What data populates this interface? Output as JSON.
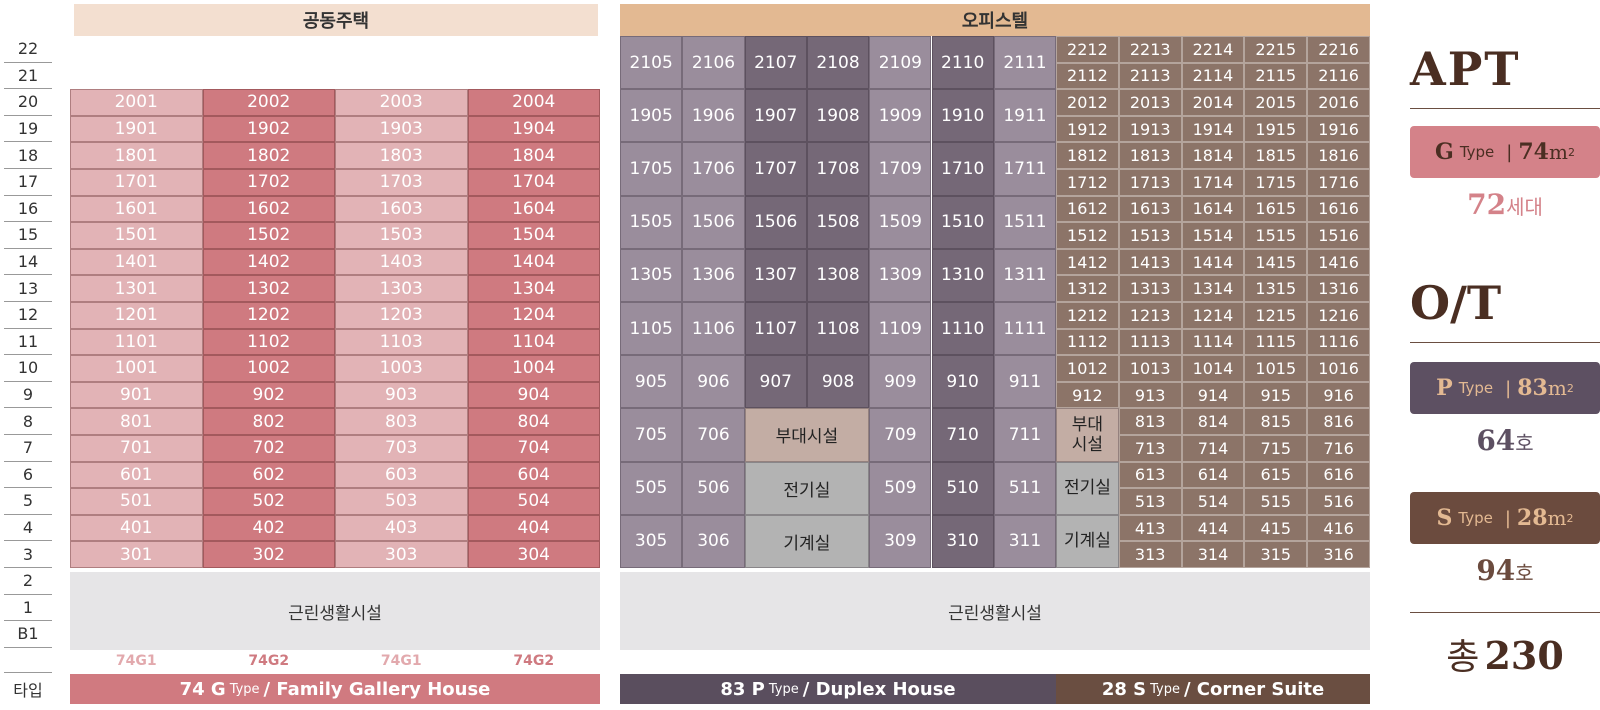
{
  "headers": {
    "apartment": "공동주택",
    "officetel": "오피스텔"
  },
  "floors": [
    "22",
    "21",
    "20",
    "19",
    "18",
    "17",
    "16",
    "15",
    "14",
    "13",
    "12",
    "11",
    "10",
    "9",
    "8",
    "7",
    "6",
    "5",
    "4",
    "3",
    "2",
    "1",
    "B1"
  ],
  "type_row_label": "타입",
  "commercial_label": "근린생활시설",
  "apartment_floors": [
    "20",
    "19",
    "18",
    "17",
    "16",
    "15",
    "14",
    "13",
    "12",
    "11",
    "10",
    "9",
    "8",
    "7",
    "6",
    "5",
    "4",
    "3"
  ],
  "apartment_columns": [
    "01",
    "02",
    "03",
    "04"
  ],
  "apartment_types": [
    "74G1",
    "74G2",
    "74G1",
    "74G2"
  ],
  "ot_p_rows": [
    [
      "2105",
      "2106",
      "2107",
      "2108",
      "2109",
      "2110",
      "2111"
    ],
    [
      "1905",
      "1906",
      "1907",
      "1908",
      "1909",
      "1910",
      "1911"
    ],
    [
      "1705",
      "1706",
      "1707",
      "1708",
      "1709",
      "1710",
      "1711"
    ],
    [
      "1505",
      "1506",
      "1506",
      "1508",
      "1509",
      "1510",
      "1511"
    ],
    [
      "1305",
      "1306",
      "1307",
      "1308",
      "1309",
      "1310",
      "1311"
    ],
    [
      "1105",
      "1106",
      "1107",
      "1108",
      "1109",
      "1110",
      "1111"
    ],
    [
      "905",
      "906",
      "907",
      "908",
      "909",
      "910",
      "911"
    ],
    [
      "705",
      "706",
      "",
      "",
      "709",
      "710",
      "711"
    ],
    [
      "505",
      "506",
      "",
      "",
      "509",
      "510",
      "511"
    ],
    [
      "305",
      "306",
      "",
      "",
      "309",
      "310",
      "311"
    ]
  ],
  "ot_p_facilities": [
    "부대시설",
    "전기실",
    "기계실"
  ],
  "ot_s_facilities": [
    "부대\n시설",
    "전기실",
    "기계실"
  ],
  "ot_s_rows": [
    [
      "2212",
      "2213",
      "2214",
      "2215",
      "2216"
    ],
    [
      "2112",
      "2113",
      "2114",
      "2115",
      "2116"
    ],
    [
      "2012",
      "2013",
      "2014",
      "2015",
      "2016"
    ],
    [
      "1912",
      "1913",
      "1914",
      "1915",
      "1916"
    ],
    [
      "1812",
      "1813",
      "1814",
      "1815",
      "1816"
    ],
    [
      "1712",
      "1713",
      "1714",
      "1715",
      "1716"
    ],
    [
      "1612",
      "1613",
      "1614",
      "1615",
      "1616"
    ],
    [
      "1512",
      "1513",
      "1514",
      "1515",
      "1516"
    ],
    [
      "1412",
      "1413",
      "1414",
      "1415",
      "1416"
    ],
    [
      "1312",
      "1313",
      "1314",
      "1315",
      "1316"
    ],
    [
      "1212",
      "1213",
      "1214",
      "1215",
      "1216"
    ],
    [
      "1112",
      "1113",
      "1114",
      "1115",
      "1116"
    ],
    [
      "1012",
      "1013",
      "1014",
      "1015",
      "1016"
    ],
    [
      "912",
      "913",
      "914",
      "915",
      "916"
    ],
    [
      "",
      "813",
      "814",
      "815",
      "816"
    ],
    [
      "",
      "713",
      "714",
      "715",
      "716"
    ],
    [
      "",
      "613",
      "614",
      "615",
      "616"
    ],
    [
      "",
      "513",
      "514",
      "515",
      "516"
    ],
    [
      "",
      "413",
      "414",
      "415",
      "416"
    ],
    [
      "",
      "313",
      "314",
      "315",
      "316"
    ]
  ],
  "type_bars": {
    "apt": {
      "num": "74 G",
      "type": "Type",
      "desc": "/ Family Gallery House"
    },
    "p": {
      "num": "83 P",
      "type": "Type",
      "desc": "/ Duplex House"
    },
    "s": {
      "num": "28 S",
      "type": "Type",
      "desc": "/ Corner Suite"
    }
  },
  "legend": {
    "apt_title": "APT",
    "ot_title": "O/T",
    "g": {
      "letter": "G",
      "type": "Type",
      "sep": "|",
      "area": "74",
      "unit": "m",
      "sup": "2",
      "count_num": "72",
      "count_unit": "세대"
    },
    "p": {
      "letter": "P",
      "type": "Type",
      "sep": "|",
      "area": "83",
      "unit": "m",
      "sup": "2",
      "count_num": "64",
      "count_unit": "호"
    },
    "s": {
      "letter": "S",
      "type": "Type",
      "sep": "|",
      "area": "28",
      "unit": "m",
      "sup": "2",
      "count_num": "94",
      "count_unit": "호"
    },
    "total_label": "총",
    "total_value": "230"
  },
  "colors": {
    "apt_light": "#e2b3b6",
    "apt_dark": "#cf7a80",
    "apt_header": "#f3dfd0",
    "ot_header": "#e3b992",
    "p_light": "#9a8d9c",
    "p_dark": "#756877",
    "s_cell": "#8c7468",
    "facility_tan": "#c3ada4",
    "facility_gray": "#b3b3b3",
    "commercial_bg": "#e6e5e7",
    "bar_apt": "#d07a80",
    "bar_p": "#5a4e5e",
    "bar_s": "#6a4e41",
    "legend_g": "#d48289",
    "legend_p": "#5d5062",
    "legend_s": "#6b4b3e"
  }
}
